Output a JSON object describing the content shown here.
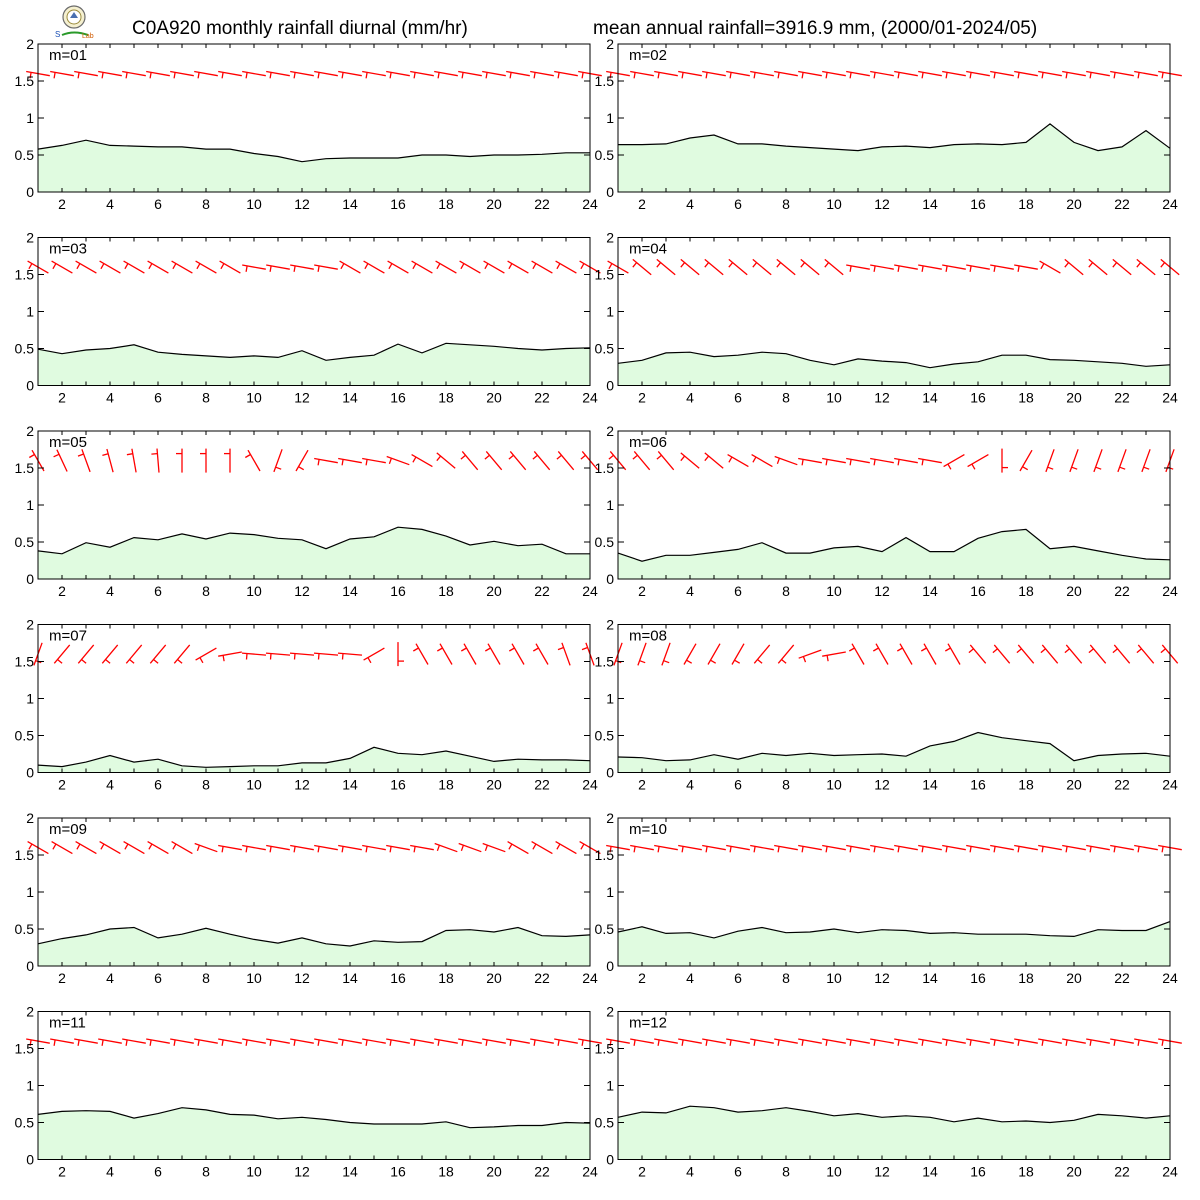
{
  "header": {
    "title": "C0A920 monthly rainfall diurnal (mm/hr)",
    "stats": "mean annual rainfall=3916.9 mm, (2000/01-2024/05)"
  },
  "colors": {
    "rain_fill": "#e0fbe0",
    "rain_line": "#000000",
    "wind_barb": "#ff0000",
    "frame": "#000000"
  },
  "chart_data": [
    {
      "panel_label": "m=01",
      "type": "area",
      "x": [
        1,
        2,
        3,
        4,
        5,
        6,
        7,
        8,
        9,
        10,
        11,
        12,
        13,
        14,
        15,
        16,
        17,
        18,
        19,
        20,
        21,
        22,
        23,
        24
      ],
      "values": [
        0.58,
        0.63,
        0.7,
        0.63,
        0.62,
        0.61,
        0.61,
        0.58,
        0.58,
        0.52,
        0.48,
        0.41,
        0.45,
        0.46,
        0.46,
        0.46,
        0.5,
        0.5,
        0.48,
        0.5,
        0.5,
        0.51,
        0.53,
        0.53
      ],
      "ylim": [
        0,
        2
      ],
      "yticks": [
        0,
        0.5,
        1,
        1.5,
        2
      ],
      "xticks": [
        2,
        4,
        6,
        8,
        10,
        12,
        14,
        16,
        18,
        20,
        22,
        24
      ]
    },
    {
      "panel_label": "m=02",
      "type": "area",
      "x": [
        1,
        2,
        3,
        4,
        5,
        6,
        7,
        8,
        9,
        10,
        11,
        12,
        13,
        14,
        15,
        16,
        17,
        18,
        19,
        20,
        21,
        22,
        23,
        24
      ],
      "values": [
        0.64,
        0.64,
        0.65,
        0.73,
        0.77,
        0.65,
        0.65,
        0.62,
        0.6,
        0.58,
        0.56,
        0.61,
        0.62,
        0.6,
        0.64,
        0.65,
        0.64,
        0.67,
        0.92,
        0.67,
        0.56,
        0.61,
        0.83,
        0.59
      ],
      "ylim": [
        0,
        2
      ],
      "yticks": [
        0,
        0.5,
        1,
        1.5,
        2
      ],
      "xticks": [
        2,
        4,
        6,
        8,
        10,
        12,
        14,
        16,
        18,
        20,
        22,
        24
      ]
    },
    {
      "panel_label": "m=03",
      "type": "area",
      "x": [
        1,
        2,
        3,
        4,
        5,
        6,
        7,
        8,
        9,
        10,
        11,
        12,
        13,
        14,
        15,
        16,
        17,
        18,
        19,
        20,
        21,
        22,
        23,
        24
      ],
      "values": [
        0.49,
        0.43,
        0.48,
        0.5,
        0.55,
        0.45,
        0.42,
        0.4,
        0.38,
        0.4,
        0.38,
        0.47,
        0.34,
        0.38,
        0.41,
        0.56,
        0.44,
        0.57,
        0.55,
        0.53,
        0.5,
        0.48,
        0.5,
        0.51
      ],
      "ylim": [
        0,
        2
      ],
      "yticks": [
        0,
        0.5,
        1,
        1.5,
        2
      ],
      "xticks": [
        2,
        4,
        6,
        8,
        10,
        12,
        14,
        16,
        18,
        20,
        22,
        24
      ]
    },
    {
      "panel_label": "m=04",
      "type": "area",
      "x": [
        1,
        2,
        3,
        4,
        5,
        6,
        7,
        8,
        9,
        10,
        11,
        12,
        13,
        14,
        15,
        16,
        17,
        18,
        19,
        20,
        21,
        22,
        23,
        24
      ],
      "values": [
        0.3,
        0.34,
        0.44,
        0.45,
        0.39,
        0.41,
        0.45,
        0.43,
        0.34,
        0.28,
        0.36,
        0.33,
        0.31,
        0.24,
        0.29,
        0.32,
        0.41,
        0.41,
        0.35,
        0.34,
        0.32,
        0.3,
        0.26,
        0.28
      ],
      "ylim": [
        0,
        2
      ],
      "yticks": [
        0,
        0.5,
        1,
        1.5,
        2
      ],
      "xticks": [
        2,
        4,
        6,
        8,
        10,
        12,
        14,
        16,
        18,
        20,
        22,
        24
      ]
    },
    {
      "panel_label": "m=05",
      "type": "area",
      "x": [
        1,
        2,
        3,
        4,
        5,
        6,
        7,
        8,
        9,
        10,
        11,
        12,
        13,
        14,
        15,
        16,
        17,
        18,
        19,
        20,
        21,
        22,
        23,
        24
      ],
      "values": [
        0.38,
        0.34,
        0.49,
        0.43,
        0.56,
        0.53,
        0.61,
        0.54,
        0.62,
        0.6,
        0.55,
        0.53,
        0.41,
        0.54,
        0.57,
        0.7,
        0.67,
        0.58,
        0.46,
        0.51,
        0.45,
        0.47,
        0.34,
        0.34
      ],
      "ylim": [
        0,
        2
      ],
      "yticks": [
        0,
        0.5,
        1,
        1.5,
        2
      ],
      "xticks": [
        2,
        4,
        6,
        8,
        10,
        12,
        14,
        16,
        18,
        20,
        22,
        24
      ]
    },
    {
      "panel_label": "m=06",
      "type": "area",
      "x": [
        1,
        2,
        3,
        4,
        5,
        6,
        7,
        8,
        9,
        10,
        11,
        12,
        13,
        14,
        15,
        16,
        17,
        18,
        19,
        20,
        21,
        22,
        23,
        24
      ],
      "values": [
        0.35,
        0.24,
        0.32,
        0.32,
        0.36,
        0.4,
        0.49,
        0.35,
        0.35,
        0.42,
        0.44,
        0.37,
        0.56,
        0.37,
        0.37,
        0.55,
        0.64,
        0.67,
        0.41,
        0.44,
        0.38,
        0.32,
        0.27,
        0.26
      ],
      "ylim": [
        0,
        2
      ],
      "yticks": [
        0,
        0.5,
        1,
        1.5,
        2
      ],
      "xticks": [
        2,
        4,
        6,
        8,
        10,
        12,
        14,
        16,
        18,
        20,
        22,
        24
      ]
    },
    {
      "panel_label": "m=07",
      "type": "area",
      "x": [
        1,
        2,
        3,
        4,
        5,
        6,
        7,
        8,
        9,
        10,
        11,
        12,
        13,
        14,
        15,
        16,
        17,
        18,
        19,
        20,
        21,
        22,
        23,
        24
      ],
      "values": [
        0.1,
        0.08,
        0.14,
        0.23,
        0.14,
        0.18,
        0.09,
        0.07,
        0.08,
        0.09,
        0.09,
        0.13,
        0.13,
        0.19,
        0.34,
        0.26,
        0.24,
        0.29,
        0.22,
        0.15,
        0.18,
        0.17,
        0.17,
        0.16
      ],
      "ylim": [
        0,
        2
      ],
      "yticks": [
        0,
        0.5,
        1,
        1.5,
        2
      ],
      "xticks": [
        2,
        4,
        6,
        8,
        10,
        12,
        14,
        16,
        18,
        20,
        22,
        24
      ]
    },
    {
      "panel_label": "m=08",
      "type": "area",
      "x": [
        1,
        2,
        3,
        4,
        5,
        6,
        7,
        8,
        9,
        10,
        11,
        12,
        13,
        14,
        15,
        16,
        17,
        18,
        19,
        20,
        21,
        22,
        23,
        24
      ],
      "values": [
        0.21,
        0.2,
        0.16,
        0.17,
        0.24,
        0.18,
        0.26,
        0.23,
        0.26,
        0.23,
        0.24,
        0.25,
        0.22,
        0.36,
        0.42,
        0.54,
        0.47,
        0.43,
        0.39,
        0.16,
        0.23,
        0.25,
        0.26,
        0.22
      ],
      "ylim": [
        0,
        2
      ],
      "yticks": [
        0,
        0.5,
        1,
        1.5,
        2
      ],
      "xticks": [
        2,
        4,
        6,
        8,
        10,
        12,
        14,
        16,
        18,
        20,
        22,
        24
      ]
    },
    {
      "panel_label": "m=09",
      "type": "area",
      "x": [
        1,
        2,
        3,
        4,
        5,
        6,
        7,
        8,
        9,
        10,
        11,
        12,
        13,
        14,
        15,
        16,
        17,
        18,
        19,
        20,
        21,
        22,
        23,
        24
      ],
      "values": [
        0.3,
        0.37,
        0.42,
        0.5,
        0.52,
        0.38,
        0.43,
        0.51,
        0.43,
        0.36,
        0.31,
        0.38,
        0.3,
        0.27,
        0.34,
        0.32,
        0.33,
        0.48,
        0.49,
        0.46,
        0.52,
        0.41,
        0.4,
        0.42
      ],
      "ylim": [
        0,
        2
      ],
      "yticks": [
        0,
        0.5,
        1,
        1.5,
        2
      ],
      "xticks": [
        2,
        4,
        6,
        8,
        10,
        12,
        14,
        16,
        18,
        20,
        22,
        24
      ]
    },
    {
      "panel_label": "m=10",
      "type": "area",
      "x": [
        1,
        2,
        3,
        4,
        5,
        6,
        7,
        8,
        9,
        10,
        11,
        12,
        13,
        14,
        15,
        16,
        17,
        18,
        19,
        20,
        21,
        22,
        23,
        24
      ],
      "values": [
        0.46,
        0.53,
        0.44,
        0.45,
        0.38,
        0.47,
        0.52,
        0.45,
        0.46,
        0.5,
        0.45,
        0.49,
        0.48,
        0.44,
        0.45,
        0.43,
        0.43,
        0.43,
        0.41,
        0.4,
        0.49,
        0.48,
        0.48,
        0.6
      ],
      "ylim": [
        0,
        2
      ],
      "yticks": [
        0,
        0.5,
        1,
        1.5,
        2
      ],
      "xticks": [
        2,
        4,
        6,
        8,
        10,
        12,
        14,
        16,
        18,
        20,
        22,
        24
      ]
    },
    {
      "panel_label": "m=11",
      "type": "area",
      "x": [
        1,
        2,
        3,
        4,
        5,
        6,
        7,
        8,
        9,
        10,
        11,
        12,
        13,
        14,
        15,
        16,
        17,
        18,
        19,
        20,
        21,
        22,
        23,
        24
      ],
      "values": [
        0.61,
        0.65,
        0.66,
        0.65,
        0.56,
        0.62,
        0.7,
        0.67,
        0.61,
        0.6,
        0.55,
        0.57,
        0.54,
        0.5,
        0.48,
        0.48,
        0.48,
        0.51,
        0.43,
        0.44,
        0.46,
        0.46,
        0.5,
        0.49
      ],
      "ylim": [
        0,
        2
      ],
      "yticks": [
        0,
        0.5,
        1,
        1.5,
        2
      ],
      "xticks": [
        2,
        4,
        6,
        8,
        10,
        12,
        14,
        16,
        18,
        20,
        22,
        24
      ]
    },
    {
      "panel_label": "m=12",
      "type": "area",
      "x": [
        1,
        2,
        3,
        4,
        5,
        6,
        7,
        8,
        9,
        10,
        11,
        12,
        13,
        14,
        15,
        16,
        17,
        18,
        19,
        20,
        21,
        22,
        23,
        24
      ],
      "values": [
        0.57,
        0.64,
        0.63,
        0.72,
        0.7,
        0.64,
        0.66,
        0.7,
        0.65,
        0.59,
        0.62,
        0.57,
        0.59,
        0.57,
        0.51,
        0.56,
        0.51,
        0.52,
        0.5,
        0.53,
        0.61,
        0.59,
        0.56,
        0.59
      ],
      "ylim": [
        0,
        2
      ],
      "yticks": [
        0,
        0.5,
        1,
        1.5,
        2
      ],
      "xticks": [
        2,
        4,
        6,
        8,
        10,
        12,
        14,
        16,
        18,
        20,
        22,
        24
      ]
    }
  ],
  "wind_barbs": [
    {
      "panel": "m=01",
      "dir_deg": [
        100,
        100,
        100,
        100,
        100,
        100,
        100,
        100,
        100,
        100,
        100,
        100,
        100,
        100,
        100,
        100,
        100,
        100,
        100,
        100,
        100,
        100,
        100,
        100
      ]
    },
    {
      "panel": "m=02",
      "dir_deg": [
        100,
        100,
        100,
        100,
        100,
        100,
        100,
        100,
        100,
        100,
        100,
        100,
        100,
        100,
        100,
        100,
        100,
        100,
        100,
        100,
        100,
        100,
        100,
        100
      ]
    },
    {
      "panel": "m=03",
      "dir_deg": [
        120,
        120,
        120,
        120,
        120,
        120,
        120,
        120,
        120,
        100,
        100,
        100,
        100,
        120,
        120,
        120,
        120,
        120,
        120,
        120,
        120,
        120,
        120,
        120
      ]
    },
    {
      "panel": "m=04",
      "dir_deg": [
        120,
        130,
        130,
        130,
        130,
        130,
        130,
        130,
        130,
        130,
        100,
        100,
        100,
        100,
        100,
        100,
        100,
        100,
        120,
        130,
        130,
        130,
        130,
        130
      ]
    },
    {
      "panel": "m=05",
      "dir_deg": [
        150,
        155,
        160,
        165,
        170,
        175,
        180,
        180,
        180,
        150,
        20,
        30,
        100,
        100,
        100,
        110,
        120,
        130,
        140,
        140,
        140,
        140,
        140,
        140
      ]
    },
    {
      "panel": "m=06",
      "dir_deg": [
        140,
        140,
        140,
        130,
        130,
        120,
        120,
        110,
        100,
        100,
        100,
        100,
        100,
        100,
        60,
        60,
        0,
        30,
        20,
        20,
        20,
        20,
        20,
        20
      ]
    },
    {
      "panel": "m=07",
      "dir_deg": [
        20,
        40,
        40,
        40,
        40,
        40,
        40,
        60,
        80,
        95,
        95,
        95,
        95,
        95,
        60,
        0,
        150,
        150,
        150,
        150,
        150,
        150,
        160,
        160
      ]
    },
    {
      "panel": "m=08",
      "dir_deg": [
        20,
        20,
        20,
        30,
        30,
        30,
        40,
        40,
        70,
        80,
        150,
        150,
        150,
        150,
        150,
        140,
        140,
        140,
        140,
        140,
        140,
        140,
        140,
        140
      ]
    },
    {
      "panel": "m=09",
      "dir_deg": [
        120,
        120,
        120,
        120,
        120,
        120,
        120,
        110,
        100,
        100,
        100,
        100,
        100,
        100,
        100,
        100,
        100,
        110,
        110,
        110,
        120,
        120,
        120,
        120
      ]
    },
    {
      "panel": "m=10",
      "dir_deg": [
        100,
        100,
        100,
        100,
        100,
        100,
        100,
        100,
        100,
        100,
        100,
        100,
        100,
        100,
        100,
        100,
        100,
        100,
        100,
        100,
        100,
        100,
        100,
        100
      ]
    },
    {
      "panel": "m=11",
      "dir_deg": [
        100,
        100,
        100,
        100,
        100,
        100,
        100,
        100,
        100,
        100,
        100,
        100,
        100,
        100,
        100,
        100,
        100,
        100,
        100,
        100,
        100,
        100,
        100,
        100
      ]
    },
    {
      "panel": "m=12",
      "dir_deg": [
        100,
        100,
        100,
        100,
        100,
        100,
        100,
        100,
        100,
        100,
        100,
        100,
        100,
        100,
        100,
        100,
        100,
        100,
        100,
        100,
        100,
        100,
        100,
        100
      ]
    }
  ],
  "logo": {
    "icon": "station-emblem-icon"
  }
}
